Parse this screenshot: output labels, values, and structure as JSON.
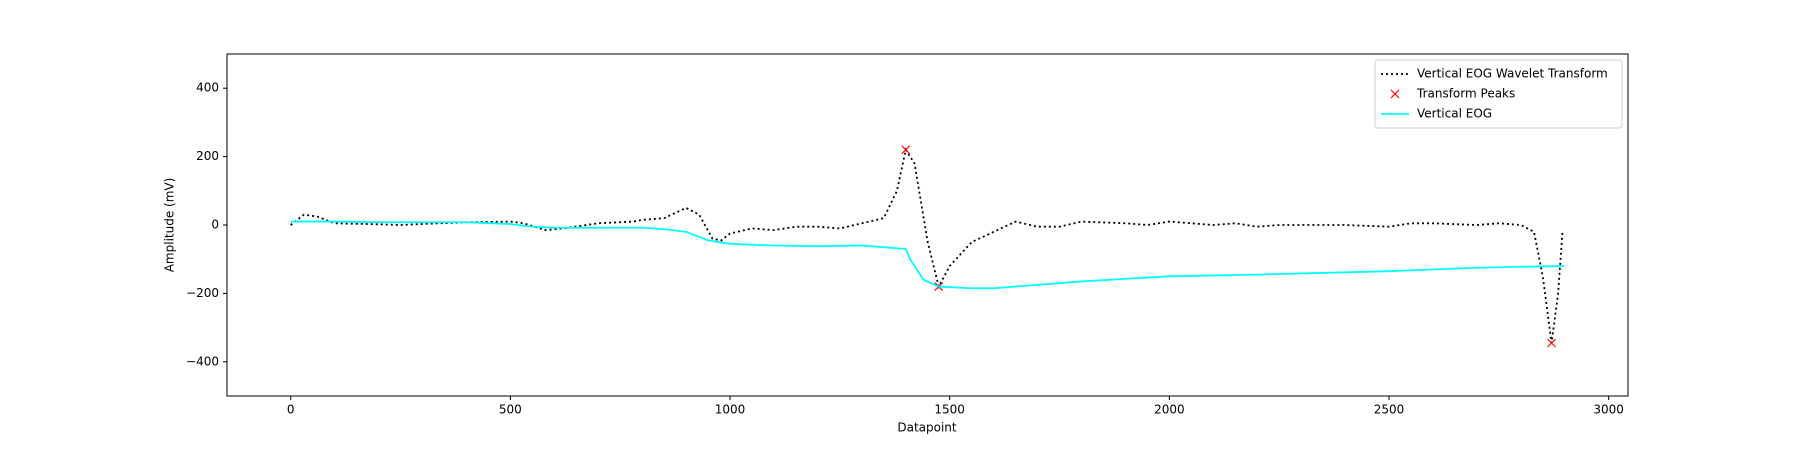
{
  "chart_data": {
    "type": "line",
    "xlabel": "Datapoint",
    "ylabel": "Amplitude (mV)",
    "xlim": [
      -145,
      3044
    ],
    "ylim": [
      -500,
      500
    ],
    "xticks": [
      0,
      500,
      1000,
      1500,
      2000,
      2500,
      3000
    ],
    "yticks": [
      {
        "value": -400,
        "label": "−400"
      },
      {
        "value": -200,
        "label": "−200"
      },
      0,
      200,
      400
    ],
    "legend": "upper right",
    "series": [
      {
        "name": "Vertical EOG Wavelet Transform",
        "color": "#000000",
        "style": "dotted",
        "x": [
          0,
          30,
          60,
          100,
          200,
          250,
          300,
          400,
          500,
          530,
          580,
          620,
          700,
          780,
          800,
          850,
          900,
          930,
          960,
          980,
          1000,
          1050,
          1100,
          1150,
          1200,
          1250,
          1300,
          1350,
          1380,
          1400,
          1420,
          1450,
          1475,
          1500,
          1550,
          1600,
          1650,
          1700,
          1750,
          1800,
          1900,
          1950,
          2000,
          2050,
          2100,
          2150,
          2200,
          2250,
          2300,
          2400,
          2500,
          2550,
          2600,
          2700,
          2750,
          2800,
          2830,
          2850,
          2870,
          2885,
          2895
        ],
        "values": [
          0,
          30,
          25,
          5,
          2,
          0,
          3,
          8,
          10,
          5,
          -15,
          -10,
          5,
          10,
          15,
          20,
          50,
          30,
          -40,
          -45,
          -25,
          -10,
          -15,
          -5,
          -5,
          -10,
          5,
          20,
          100,
          220,
          180,
          -50,
          -180,
          -120,
          -50,
          -20,
          10,
          -5,
          -5,
          10,
          5,
          0,
          10,
          5,
          0,
          5,
          -5,
          0,
          0,
          0,
          -5,
          5,
          5,
          0,
          5,
          0,
          -20,
          -150,
          -345,
          -200,
          -15
        ]
      },
      {
        "name": "Transform Peaks",
        "color": "#ff0000",
        "marker": "x",
        "x": [
          1400,
          1475,
          2870
        ],
        "values": [
          220,
          -180,
          -345
        ]
      },
      {
        "name": "Vertical EOG",
        "color": "#00ffff",
        "style": "solid",
        "x": [
          0,
          100,
          200,
          300,
          400,
          500,
          550,
          600,
          700,
          800,
          850,
          900,
          950,
          1000,
          1100,
          1200,
          1300,
          1400,
          1410,
          1440,
          1475,
          1550,
          1600,
          1700,
          1800,
          2000,
          2200,
          2500,
          2700,
          2800,
          2899
        ],
        "values": [
          10,
          10,
          8,
          8,
          8,
          3,
          -5,
          -8,
          -8,
          -8,
          -12,
          -20,
          -45,
          -55,
          -60,
          -62,
          -60,
          -70,
          -100,
          -160,
          -180,
          -185,
          -185,
          -175,
          -165,
          -150,
          -145,
          -135,
          -125,
          -122,
          -120
        ]
      }
    ]
  }
}
